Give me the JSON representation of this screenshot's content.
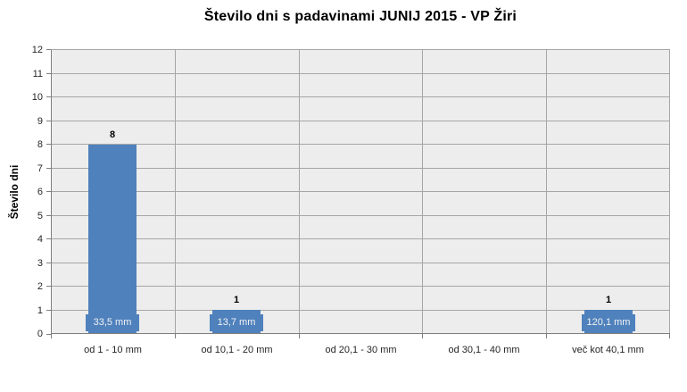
{
  "chart_data": {
    "type": "bar",
    "title": "Število dni s padavinami JUNIJ 2015 - VP Žiri",
    "xlabel": "",
    "ylabel": "Število dni",
    "categories": [
      "od 1 - 10 mm",
      "od 10,1 - 20 mm",
      "od 20,1 - 30 mm",
      "od 30,1 - 40 mm",
      "več kot 40,1 mm"
    ],
    "values": [
      8,
      1,
      0,
      0,
      1
    ],
    "value_labels": [
      "8",
      "1",
      "",
      "",
      "1"
    ],
    "bar_data_labels": [
      "33,5 mm",
      "13,7 mm",
      "",
      "",
      "120,1 mm"
    ],
    "ylim": [
      0,
      12
    ],
    "ytick_interval": 1,
    "grid": true,
    "legend": false,
    "colors": {
      "bar": "#4F81BD",
      "plot_background": "#EDEDED",
      "gridline": "#A6A6A6",
      "axis": "#7F7F7F",
      "tick_label_text": "#262626",
      "value_label_text": "#000000",
      "data_label_text": "#F2F2F2",
      "title_text": "#000000",
      "page_background": "#FFFFFF"
    }
  }
}
